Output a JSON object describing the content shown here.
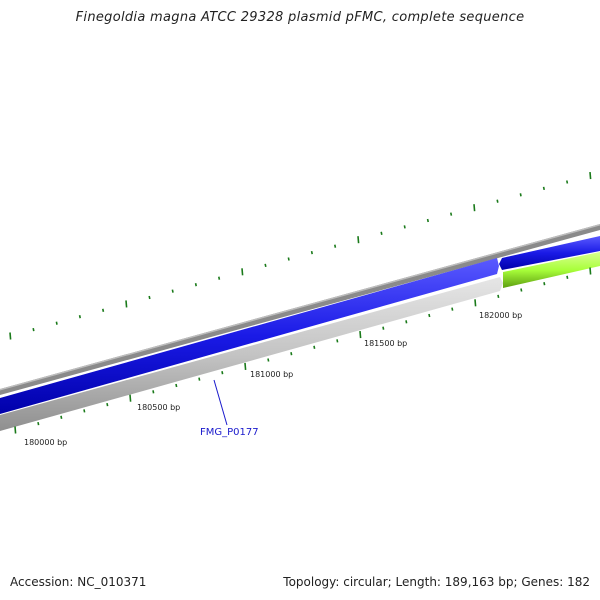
{
  "title": "Finegoldia magna ATCC 29328 plasmid pFMC, complete sequence",
  "footer": {
    "accession": "Accession: NC_010371",
    "summary": "Topology: circular; Length: 189,163 bp; Genes: 182"
  },
  "scale_labels": [
    "180000 bp",
    "180500 bp",
    "181000 bp",
    "181500 bp",
    "182000 bp"
  ],
  "gene_label": "FMG_P0177",
  "colors": {
    "backbone": "#8a8a8a",
    "forward_gene": "#1a1ae6",
    "reverse_track": "#c4c4c4",
    "reverse_gene": "#a8ff3a",
    "ticks": "#1a7a1a",
    "label_line": "#1a1acc"
  }
}
